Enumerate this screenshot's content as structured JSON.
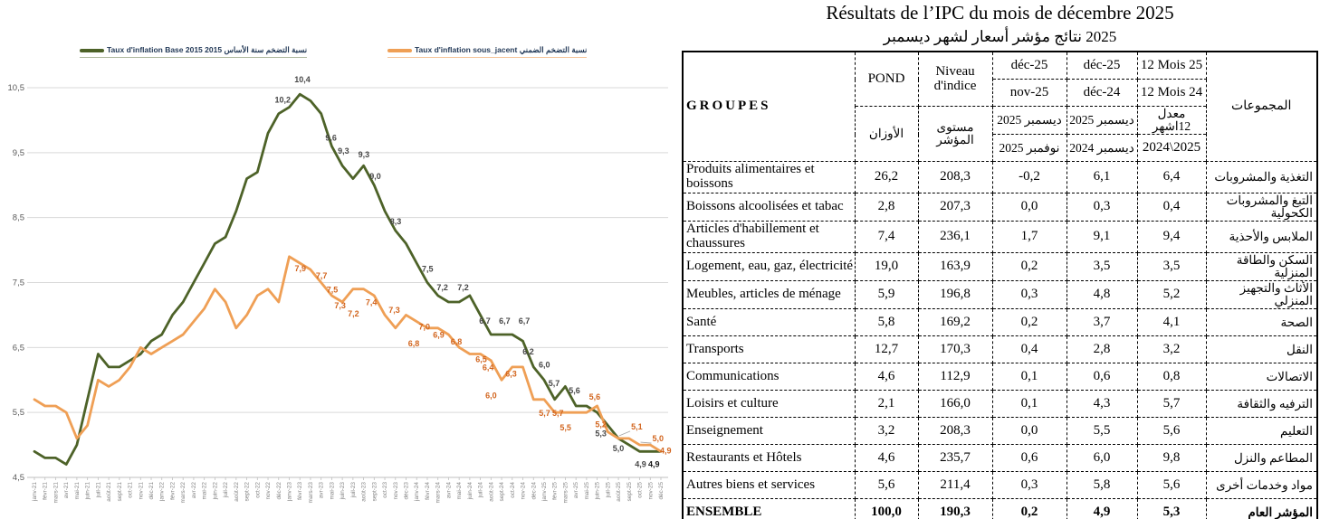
{
  "title": {
    "fr": "Résultats de l’IPC du mois de décembre 2025",
    "ar_text": "نتائج مؤشر أسعار لشهر ديسمبر",
    "ar_year": "2025"
  },
  "table": {
    "header": {
      "groupes": "GROUPES",
      "pond_fr": "POND",
      "pond_ar": "الأوزان",
      "indice_fr": "Niveau d'indice",
      "indice_ar": "مستوى المؤشر",
      "c4r1": "déc-25",
      "c4r2": "nov-25",
      "c4r3": "ديسمبر 2025",
      "c4r4": "نوفمبر 2025",
      "c5r1": "déc-25",
      "c5r2": "déc-24",
      "c5r3": "ديسمبر 2025",
      "c5r4": "ديسمبر 2024",
      "c6r1": "12 Mois 25",
      "c6r2": "12 Mois 24",
      "c6r3": "معدل 12اشهر",
      "c6r4": "2024\\2025",
      "groups_ar": "المجموعات"
    },
    "rows": [
      {
        "cells": [
          "Produits alimentaires et boissons",
          "26,2",
          "208,3",
          "-0,2",
          "6,1",
          "6,4",
          "التغذية والمشروبات"
        ]
      },
      {
        "cells": [
          "Boissons alcoolisées et tabac",
          "2,8",
          "207,3",
          "0,0",
          "0,3",
          "0,4",
          "التبغ والمشروبات الكحولية"
        ]
      },
      {
        "cells": [
          "Articles d'habillement et chaussures",
          "7,4",
          "236,1",
          "1,7",
          "9,1",
          "9,4",
          "الملابس والأحذية"
        ]
      },
      {
        "cells": [
          "Logement, eau, gaz, électricité",
          "19,0",
          "163,9",
          "0,2",
          "3,5",
          "3,5",
          "السكن والطاقة المنزلية"
        ]
      },
      {
        "cells": [
          "Meubles, articles de ménage",
          "5,9",
          "196,8",
          "0,3",
          "4,8",
          "5,2",
          "الأثاث والتجهيز المنزلي"
        ]
      },
      {
        "cells": [
          "Santé",
          "5,8",
          "169,2",
          "0,2",
          "3,7",
          "4,1",
          "الصحة"
        ]
      },
      {
        "cells": [
          "Transports",
          "12,7",
          "170,3",
          "0,4",
          "2,8",
          "3,2",
          "النقل"
        ]
      },
      {
        "cells": [
          "Communications",
          "4,6",
          "112,9",
          "0,1",
          "0,6",
          "0,8",
          "الاتصالات"
        ]
      },
      {
        "cells": [
          "Loisirs et culture",
          "2,1",
          "166,0",
          "0,1",
          "4,3",
          "5,7",
          "الترفيه والثقافة"
        ]
      },
      {
        "cells": [
          "Enseignement",
          "3,2",
          "208,3",
          "0,0",
          "5,5",
          "5,6",
          "التعليم"
        ]
      },
      {
        "cells": [
          "Restaurants et Hôtels",
          "4,6",
          "235,7",
          "0,6",
          "6,0",
          "9,8",
          "المطاعم والنزل"
        ]
      },
      {
        "cells": [
          "Autres biens et services",
          "5,6",
          "211,4",
          "0,3",
          "5,8",
          "5,6",
          "مواد وخدمات أخرى"
        ]
      }
    ],
    "total_row": {
      "cells": [
        "ENSEMBLE",
        "100,0",
        "190,3",
        "0,2",
        "4,9",
        "5,3",
        "المؤشر العام"
      ]
    }
  },
  "chart_data": {
    "type": "line",
    "ylim": [
      4.5,
      10.5
    ],
    "ytick_step": 1,
    "grid": true,
    "legend_position": "top",
    "axis_color": "#bfbfbf",
    "grid_color": "#d9d9d9",
    "ylabel_color": "#595959",
    "xlabel_color": "#7f7f7f",
    "x": [
      "janv-21",
      "févr-21",
      "mars-21",
      "avr-21",
      "mai-21",
      "juin-21",
      "juil-21",
      "août-21",
      "sept-21",
      "oct-21",
      "nov-21",
      "déc-21",
      "janv-22",
      "févr-22",
      "mars-22",
      "avr-22",
      "mai-22",
      "juin-22",
      "juil-22",
      "août-22",
      "sept-22",
      "oct-22",
      "nov-22",
      "déc-22",
      "janv-23",
      "févr-23",
      "mars-23",
      "avr-23",
      "mai-23",
      "juin-23",
      "juil-23",
      "août-23",
      "sept-23",
      "oct-23",
      "nov-23",
      "déc-23",
      "janv-24",
      "févr-24",
      "mars-24",
      "avr-24",
      "mai-24",
      "juin-24",
      "juil-24",
      "août-24",
      "sept-24",
      "oct-24",
      "nov-24",
      "déc-24",
      "janv-25",
      "févr-25",
      "mars-25",
      "avr-25",
      "mai-25",
      "juin-25",
      "juil-25",
      "août-25",
      "sept-25",
      "oct-25",
      "nov-25",
      "déc-25"
    ],
    "series": [
      {
        "name": "Taux d'inflation Base 2015 نسبة التضخم سنة الأساس 2015",
        "color": "#4d6228",
        "label_color": "#474747",
        "values": [
          4.9,
          4.8,
          4.8,
          4.7,
          5.0,
          5.7,
          6.4,
          6.2,
          6.2,
          6.3,
          6.4,
          6.6,
          6.7,
          7.0,
          7.2,
          7.5,
          7.8,
          8.1,
          8.2,
          8.6,
          9.1,
          9.2,
          9.8,
          10.1,
          10.2,
          10.4,
          10.3,
          10.1,
          9.6,
          9.3,
          9.1,
          9.3,
          9.0,
          8.6,
          8.3,
          8.1,
          7.8,
          7.5,
          7.3,
          7.2,
          7.2,
          7.3,
          7.0,
          6.7,
          6.7,
          6.7,
          6.6,
          6.2,
          6.0,
          5.7,
          5.9,
          5.6,
          5.6,
          5.5,
          5.3,
          5.1,
          5.0,
          4.9,
          4.9,
          4.9
        ],
        "labels": [
          {
            "i": 24,
            "t": "10,2",
            "dx": -16,
            "dy": -5
          },
          {
            "i": 25,
            "t": "10,4",
            "dx": -6,
            "dy": -13
          },
          {
            "i": 28,
            "t": "9,6",
            "dx": -7,
            "dy": -6
          },
          {
            "i": 29,
            "t": "9,3",
            "dx": -5,
            "dy": -13
          },
          {
            "i": 31,
            "t": "9,3",
            "dx": -6,
            "dy": -9
          },
          {
            "i": 32,
            "t": "9,0",
            "dx": -5,
            "dy": -7
          },
          {
            "i": 34,
            "t": "8,3",
            "dx": -6,
            "dy": -7
          },
          {
            "i": 37,
            "t": "7,5",
            "dx": -6,
            "dy": -12
          },
          {
            "i": 39,
            "t": "7,2",
            "dx": -13,
            "dy": -13
          },
          {
            "i": 40,
            "t": "7,2",
            "dx": -2,
            "dy": -13
          },
          {
            "i": 43,
            "t": "6,7",
            "dx": -13,
            "dy": -12
          },
          {
            "i": 44,
            "t": "6,7",
            "dx": -3,
            "dy": -12
          },
          {
            "i": 45,
            "t": "6,7",
            "dx": 7,
            "dy": -12
          },
          {
            "i": 47,
            "t": "6,2",
            "dx": -12,
            "dy": -14
          },
          {
            "i": 48,
            "t": "6,0",
            "dx": -6,
            "dy": -14
          },
          {
            "i": 49,
            "t": "5,7",
            "dx": -7,
            "dy": -15
          },
          {
            "i": 51,
            "t": "5,6",
            "dx": -8,
            "dy": -14
          },
          {
            "i": 54,
            "t": "5,3",
            "dx": -14,
            "dy": 12
          },
          {
            "i": 56,
            "t": "5,0",
            "dx": -18,
            "dy": 7
          },
          {
            "i": 58,
            "t": "4,9",
            "dx": -17,
            "dy": 17
          },
          {
            "i": 59,
            "t": "4,9",
            "dx": -14,
            "dy": 17,
            "strong": true
          }
        ]
      },
      {
        "name": "Taux d'inflation sous_jacent نسبة التضخم الضمني",
        "color": "#ef9f55",
        "label_color": "#d2651e",
        "values": [
          5.7,
          5.6,
          5.6,
          5.5,
          5.1,
          5.3,
          6.0,
          5.9,
          6.0,
          6.2,
          6.5,
          6.4,
          6.5,
          6.6,
          6.7,
          6.9,
          7.1,
          7.4,
          7.2,
          6.8,
          7.0,
          7.3,
          7.4,
          7.2,
          7.9,
          7.8,
          7.7,
          7.5,
          7.3,
          7.2,
          7.4,
          7.4,
          7.3,
          7.0,
          6.8,
          7.0,
          6.9,
          6.8,
          6.8,
          6.7,
          6.5,
          6.4,
          6.4,
          6.3,
          6.0,
          6.2,
          6.2,
          5.7,
          5.7,
          5.5,
          5.5,
          5.5,
          5.5,
          5.6,
          5.2,
          5.1,
          5.1,
          5.0,
          5.0,
          4.9
        ],
        "labels": [
          {
            "i": 24,
            "t": "7,9",
            "dx": 6,
            "dy": 16
          },
          {
            "i": 26,
            "t": "7,7",
            "dx": 6,
            "dy": 10
          },
          {
            "i": 27,
            "t": "7,5",
            "dx": 6,
            "dy": 11
          },
          {
            "i": 28,
            "t": "7,3",
            "dx": 3,
            "dy": 14
          },
          {
            "i": 29,
            "t": "7,2",
            "dx": 6,
            "dy": 16
          },
          {
            "i": 30,
            "t": "7,4",
            "dx": 14,
            "dy": 18
          },
          {
            "i": 32,
            "t": "7,3",
            "dx": 16,
            "dy": 19
          },
          {
            "i": 34,
            "t": "6,8",
            "dx": 14,
            "dy": 20
          },
          {
            "i": 35,
            "t": "7,0",
            "dx": 14,
            "dy": 16
          },
          {
            "i": 36,
            "t": "6,9",
            "dx": 18,
            "dy": 18
          },
          {
            "i": 38,
            "t": "6,8",
            "dx": 14,
            "dy": 18
          },
          {
            "i": 40,
            "t": "6,5",
            "dx": 18,
            "dy": 16
          },
          {
            "i": 41,
            "t": "6,4",
            "dx": 14,
            "dy": 18
          },
          {
            "i": 43,
            "t": "6,3",
            "dx": 16,
            "dy": 18
          },
          {
            "i": 44,
            "t": "6,0",
            "dx": -18,
            "dy": 20
          },
          {
            "i": 47,
            "t": "5,7",
            "dx": 6,
            "dy": 18
          },
          {
            "i": 48,
            "t": "5,7",
            "dx": 9,
            "dy": 18
          },
          {
            "i": 50,
            "t": "5,5",
            "dx": -6,
            "dy": 20
          },
          {
            "i": 53,
            "t": "5,6",
            "dx": -9,
            "dy": -7
          },
          {
            "i": 54,
            "t": "5,2",
            "dx": -14,
            "dy": -5
          },
          {
            "i": 55,
            "t": "5,1",
            "dx": 14,
            "dy": -10,
            "leader": true
          },
          {
            "i": 57,
            "t": "5,0",
            "dx": 14,
            "dy": -4,
            "leader": true
          },
          {
            "i": 59,
            "t": "4,9",
            "dx": -1,
            "dy": 2
          }
        ]
      }
    ]
  }
}
